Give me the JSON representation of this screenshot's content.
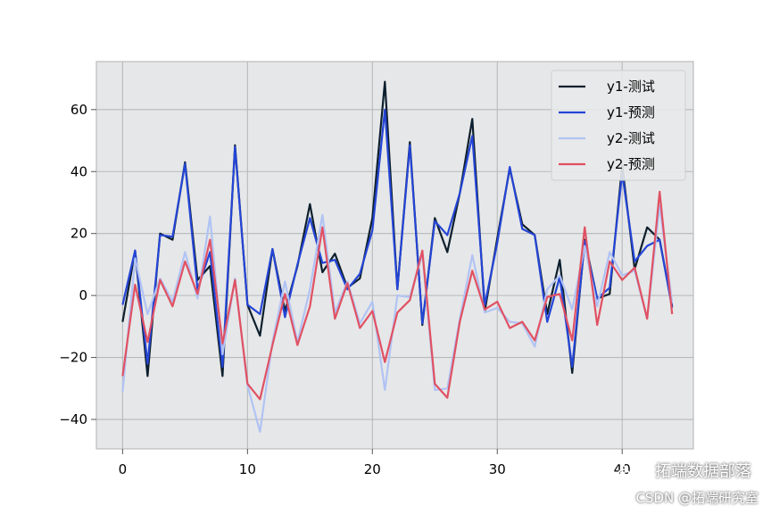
{
  "chart_data": {
    "type": "line",
    "title": "",
    "xlabel": "",
    "ylabel": "",
    "xlim": [
      -2.1,
      45.7
    ],
    "ylim": [
      -49.5,
      75.5
    ],
    "xticks": [
      0,
      10,
      20,
      30,
      40
    ],
    "yticks": [
      -40,
      -20,
      0,
      20,
      40,
      60
    ],
    "grid": true,
    "legend_position": "top-right",
    "background": "#e6e7e8",
    "series": [
      {
        "name": "y1-测试",
        "color": "#0d1f2d",
        "values": [
          -8.5,
          14.5,
          -26,
          20,
          18,
          43,
          5,
          9.5,
          -26,
          48.5,
          -3,
          -13,
          15,
          -5,
          9.5,
          29.5,
          7.5,
          13.5,
          2.5,
          5.5,
          25,
          69,
          2,
          49.5,
          -9.5,
          25,
          14,
          33,
          57,
          -5,
          18.5,
          41,
          23,
          19.5,
          -6,
          11.5,
          -25,
          18,
          -1,
          0.5,
          42,
          8.5,
          22,
          18,
          -3.5
        ]
      },
      {
        "name": "y1-预测",
        "color": "#2445d6",
        "values": [
          -3,
          14.5,
          -22,
          19.5,
          19,
          42.5,
          2,
          14,
          -23,
          48,
          -3,
          -6,
          15,
          -7,
          10,
          25,
          10.5,
          11.5,
          2,
          7,
          21,
          60,
          2,
          48.5,
          -9,
          24,
          19.5,
          33,
          51.5,
          -3,
          17,
          41.5,
          21.5,
          19.5,
          -8.5,
          6,
          -23,
          17.5,
          -1,
          2.5,
          39.5,
          11,
          16,
          18,
          -4
        ]
      },
      {
        "name": "y2-测试",
        "color": "#b1c3f4",
        "values": [
          -31,
          12,
          -6,
          5.5,
          -2,
          14,
          -1,
          25.5,
          -19,
          5.5,
          -29,
          -44,
          -15,
          4.5,
          -15,
          2,
          26,
          -5.5,
          4.5,
          -9,
          -2,
          -30.5,
          0,
          -0.5,
          13.5,
          -30.5,
          -30,
          -7.5,
          13,
          -5.5,
          -4,
          -8.5,
          -9,
          -16.5,
          2,
          6.5,
          -4.5,
          16,
          -3.5,
          14,
          6.5,
          8,
          -7.5,
          29,
          -2.5
        ]
      },
      {
        "name": "y2-预测",
        "color": "#e05163",
        "values": [
          -26,
          3.5,
          -15,
          5,
          -3.5,
          11,
          0.5,
          18,
          -15.5,
          5,
          -28.5,
          -33.5,
          -16,
          0.5,
          -16,
          -3.5,
          22,
          -7.5,
          4,
          -10.5,
          -5,
          -21.5,
          -5.5,
          -1.5,
          14.5,
          -28.5,
          -33,
          -8.5,
          8,
          -4.5,
          -2,
          -10.5,
          -8.5,
          -14.5,
          -0.5,
          0.5,
          -14.5,
          22,
          -9.5,
          11,
          5,
          9,
          -7.5,
          33.5,
          -6
        ]
      }
    ]
  },
  "watermark": {
    "main": "拓端数据部落",
    "csdn": "CSDN @拓端研究室"
  }
}
